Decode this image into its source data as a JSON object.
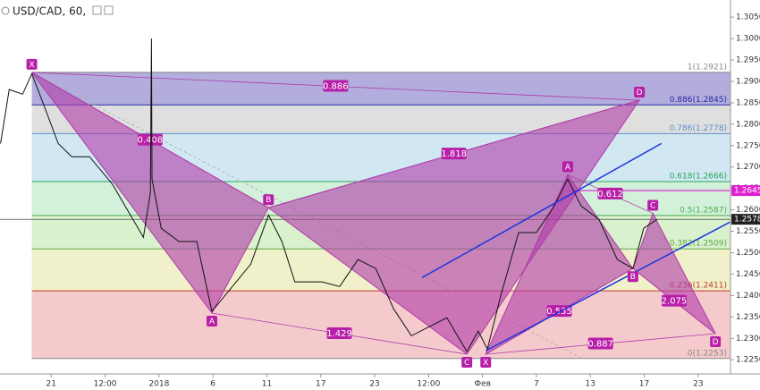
{
  "chart_data": {
    "type": "line",
    "title": "USD/CAD, 60,",
    "xlim": [
      -0.95,
      12.6
    ],
    "xticks": [
      {
        "value": 0,
        "label": "21"
      },
      {
        "value": 1,
        "label": "12:00"
      },
      {
        "value": 2,
        "label": "2018"
      },
      {
        "value": 3,
        "label": "6"
      },
      {
        "value": 4,
        "label": "11"
      },
      {
        "value": 5,
        "label": "17"
      },
      {
        "value": 6,
        "label": "23"
      },
      {
        "value": 7,
        "label": "12:00"
      },
      {
        "value": 8,
        "label": "Фев"
      },
      {
        "value": 9,
        "label": "7"
      },
      {
        "value": 10,
        "label": "13"
      },
      {
        "value": 11,
        "label": "17"
      },
      {
        "value": 12,
        "label": "23"
      }
    ],
    "ylim": [
      1.2217,
      1.309
    ],
    "yticks": [
      {
        "value": 1.225,
        "label": "1.2250"
      },
      {
        "value": 1.23,
        "label": "1.2300"
      },
      {
        "value": 1.235,
        "label": "1.2350"
      },
      {
        "value": 1.24,
        "label": "1.2400"
      },
      {
        "value": 1.245,
        "label": "1.2450"
      },
      {
        "value": 1.25,
        "label": "1.2500"
      },
      {
        "value": 1.255,
        "label": "1.2550"
      },
      {
        "value": 1.26,
        "label": "1.2600"
      },
      {
        "value": 1.265,
        "label": "1.2650"
      },
      {
        "value": 1.27,
        "label": "1.2700"
      },
      {
        "value": 1.275,
        "label": "1.2750"
      },
      {
        "value": 1.28,
        "label": "1.2800"
      },
      {
        "value": 1.285,
        "label": "1.2850"
      },
      {
        "value": 1.29,
        "label": "1.2900"
      },
      {
        "value": 1.295,
        "label": "1.2950"
      },
      {
        "value": 1.3,
        "label": "1.3000"
      },
      {
        "value": 1.305,
        "label": "1.3050"
      }
    ],
    "series": [
      {
        "name": "USD/CAD",
        "color": "#111111",
        "x": [
          -0.94,
          -0.78,
          -0.53,
          -0.36,
          -0.12,
          0.13,
          0.38,
          0.71,
          1.13,
          1.71,
          1.84,
          1.86,
          1.87,
          2.04,
          2.37,
          2.7,
          2.98,
          3.36,
          3.7,
          4.03,
          4.28,
          4.52,
          5.02,
          5.35,
          5.69,
          6.02,
          6.35,
          6.68,
          7.01,
          7.34,
          7.71,
          7.92,
          8.09,
          8.34,
          8.67,
          9.0,
          9.33,
          9.58,
          9.83,
          10.16,
          10.5,
          10.79,
          10.99,
          11.24
        ],
        "values": [
          1.2755,
          1.2881,
          1.287,
          1.2918,
          1.2839,
          1.2755,
          1.2724,
          1.2724,
          1.2661,
          1.2536,
          1.264,
          1.3,
          1.2672,
          1.2557,
          1.2526,
          1.2526,
          1.2363,
          1.2421,
          1.2473,
          1.2588,
          1.2526,
          1.2432,
          1.2432,
          1.2421,
          1.2484,
          1.2463,
          1.2369,
          1.2306,
          1.2327,
          1.2348,
          1.2269,
          1.2317,
          1.2275,
          1.24,
          1.2547,
          1.2547,
          1.2609,
          1.2672,
          1.2609,
          1.2578,
          1.2484,
          1.2463,
          1.2557,
          1.2578
        ]
      }
    ],
    "fib_levels": [
      {
        "label": "0(1.2253)",
        "value": 1.2253,
        "color": "#888888",
        "band": "#f3c4c6"
      },
      {
        "label": "0.236(1.2411)",
        "value": 1.2411,
        "color": "#c0392b",
        "band": "#eef0c4"
      },
      {
        "label": "0.382(1.2509)",
        "value": 1.2509,
        "color": "#5aa84a",
        "band": "#d6efc8"
      },
      {
        "label": "0.5(1.2587)",
        "value": 1.2587,
        "color": "#4caf50",
        "band": "#cdeed6"
      },
      {
        "label": "0.618(1.2666)",
        "value": 1.2666,
        "color": "#26a65b",
        "band": "#cce5f2"
      },
      {
        "label": "0.786(1.2778)",
        "value": 1.2778,
        "color": "#5b8fc9",
        "band": "#dcdcdc"
      },
      {
        "label": "0.886(1.2845)",
        "value": 1.2845,
        "color": "#2a2aa8",
        "band": "#aaa4d8"
      },
      {
        "label": "1(1.2921)",
        "value": 1.2921,
        "color": "#888888",
        "band": "#aaa4d8"
      }
    ],
    "patterns": [
      {
        "color": "#b03aa8",
        "points": [
          {
            "label": "X",
            "x": -0.36,
            "y": 1.2921
          },
          {
            "label": "A",
            "x": 2.98,
            "y": 1.2359
          },
          {
            "label": "B",
            "x": 4.03,
            "y": 1.2605
          },
          {
            "label": "C",
            "x": 7.71,
            "y": 1.2263
          },
          {
            "label": "D",
            "x": 10.91,
            "y": 1.2856
          }
        ],
        "ratios": [
          "0.408",
          "1.818",
          "0.886",
          "1.429"
        ]
      },
      {
        "color": "#b03aa8",
        "points": [
          {
            "label": "X",
            "x": 8.06,
            "y": 1.2263
          },
          {
            "label": "A",
            "x": 9.58,
            "y": 1.2682
          },
          {
            "label": "B",
            "x": 10.79,
            "y": 1.2463
          },
          {
            "label": "C",
            "x": 11.16,
            "y": 1.2592
          },
          {
            "label": "D",
            "x": 12.32,
            "y": 1.2311
          }
        ],
        "ratios": [
          "0.535",
          "2.075",
          "0.887",
          "0.612"
        ]
      }
    ],
    "trend_lines": [
      {
        "color": "#1a33e0",
        "x": [
          6.88,
          11.32
        ],
        "y": [
          1.2442,
          1.2755
        ]
      },
      {
        "color": "#1a33e0",
        "x": [
          8.06,
          12.6
        ],
        "y": [
          1.2271,
          1.2572
        ]
      }
    ],
    "price_markers": [
      {
        "value": 1.2645,
        "label": "1.2645",
        "color": "#e020d0"
      },
      {
        "value": 1.2578,
        "label": "1.2578",
        "color": "#222222"
      }
    ]
  }
}
